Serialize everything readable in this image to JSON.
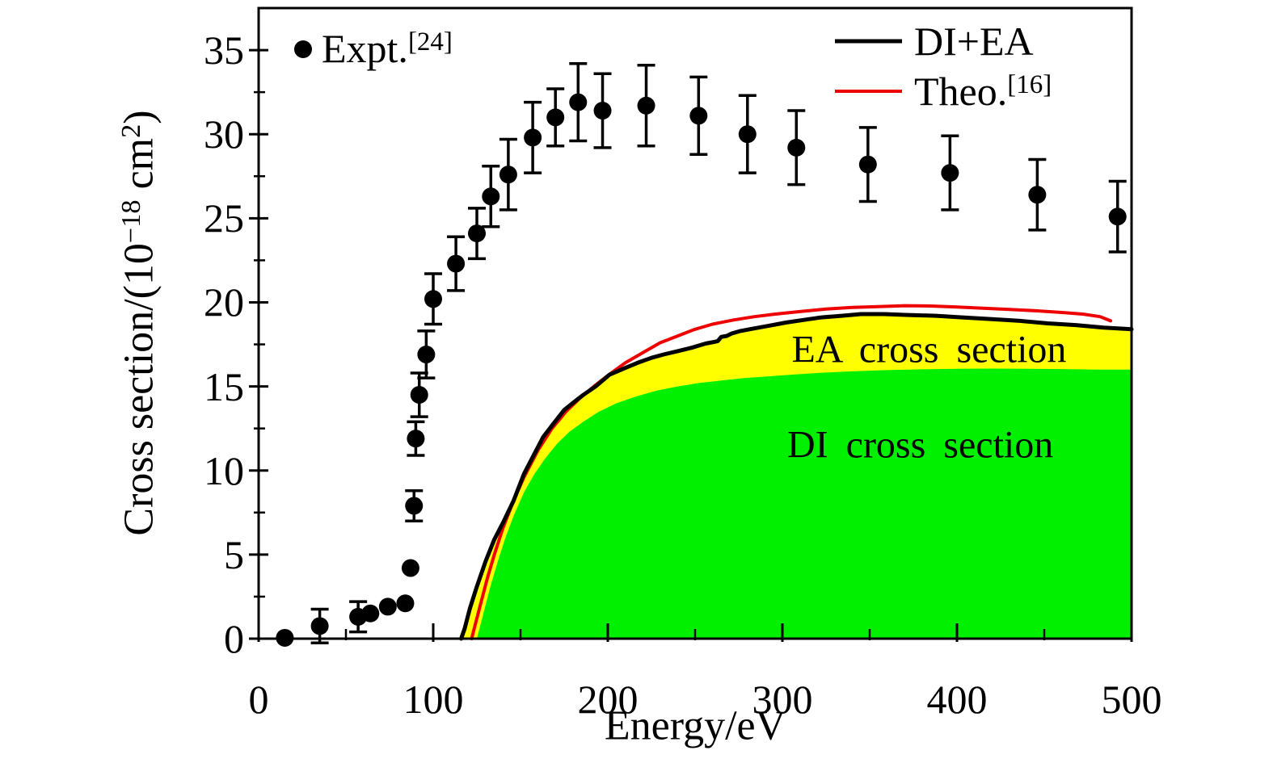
{
  "chart_data": {
    "type": "line",
    "title": "",
    "xlabel": "Energy/eV",
    "ylabel": "Cross section/(10−18 cm2)",
    "ylabel_parts": [
      "Cross section/(10",
      "−18",
      " cm",
      "2",
      ")"
    ],
    "xlim": [
      0,
      500
    ],
    "ylim": [
      0,
      37.5
    ],
    "xticks": [
      0,
      100,
      200,
      300,
      400,
      500
    ],
    "yticks": [
      0,
      5,
      10,
      15,
      20,
      25,
      30,
      35
    ],
    "xtick_labels": [
      "0",
      "100",
      "200",
      "300",
      "400",
      "500"
    ],
    "ytick_labels": [
      "0",
      "5",
      "10",
      "15",
      "20",
      "25",
      "30",
      "35"
    ],
    "minor_xticks": [
      50,
      150,
      250,
      350,
      450
    ],
    "minor_yticks": [
      2.5,
      7.5,
      12.5,
      17.5,
      22.5,
      27.5,
      32.5
    ],
    "grid": false,
    "legend_position": "top",
    "legend": [
      {
        "label": "Expt.",
        "sup": "[24]",
        "marker": "dot",
        "color": "#000000"
      },
      {
        "label": "DI+EA",
        "sup": "",
        "marker": "line",
        "color": "#000000"
      },
      {
        "label": "Theo.",
        "sup": "[16]",
        "marker": "line",
        "color": "#ee0000"
      }
    ],
    "colors": {
      "di_fill": "#00f000",
      "ea_fill": "#ffff00",
      "di_ea_line": "#000000",
      "theo_line": "#ee0000",
      "expt_marker": "#000000"
    },
    "annotations": [
      {
        "text": "EA cross section",
        "x": 384,
        "y": 17.2
      },
      {
        "text": "DI cross section",
        "x": 379,
        "y": 11.5
      }
    ],
    "expt": {
      "name": "Expt.[24]",
      "type": "scatter_errorbar",
      "points": [
        [
          15,
          0.05,
          null
        ],
        [
          35,
          0.75,
          1.0
        ],
        [
          57,
          1.3,
          0.9
        ],
        [
          64,
          1.5,
          null
        ],
        [
          74,
          1.9,
          null
        ],
        [
          84,
          2.1,
          null
        ],
        [
          87,
          4.2,
          null
        ],
        [
          89,
          7.9,
          0.9
        ],
        [
          90,
          11.9,
          1.0
        ],
        [
          92,
          14.5,
          1.3
        ],
        [
          96,
          16.9,
          1.4
        ],
        [
          100,
          20.2,
          1.5
        ],
        [
          113,
          22.3,
          1.6
        ],
        [
          125,
          24.1,
          1.5
        ],
        [
          133,
          26.3,
          1.8
        ],
        [
          143,
          27.6,
          2.1
        ],
        [
          157,
          29.8,
          2.1
        ],
        [
          170,
          31.0,
          1.7
        ],
        [
          183,
          31.9,
          2.3
        ],
        [
          197,
          31.4,
          2.2
        ],
        [
          222,
          31.7,
          2.4
        ],
        [
          252,
          31.1,
          2.3
        ],
        [
          280,
          30.0,
          2.3
        ],
        [
          308,
          29.2,
          2.2
        ],
        [
          349,
          28.2,
          2.2
        ],
        [
          396,
          27.7,
          2.2
        ],
        [
          446,
          26.4,
          2.1
        ],
        [
          492,
          25.1,
          2.1
        ]
      ]
    },
    "series": [
      {
        "name": "DI+EA",
        "type": "line",
        "color": "#000000",
        "fill": "#ffff00",
        "width": 5,
        "points": [
          [
            116,
            0
          ],
          [
            118,
            0.6
          ],
          [
            121,
            1.8
          ],
          [
            125,
            3.1
          ],
          [
            130,
            4.6
          ],
          [
            135,
            5.9
          ],
          [
            140,
            6.9
          ],
          [
            146,
            8.2
          ],
          [
            152,
            9.8
          ],
          [
            158,
            11.0
          ],
          [
            163,
            12.0
          ],
          [
            169,
            12.8
          ],
          [
            175,
            13.6
          ],
          [
            181,
            14.1
          ],
          [
            186,
            14.5
          ],
          [
            193,
            15.0
          ],
          [
            201,
            15.7
          ],
          [
            210,
            16.1
          ],
          [
            217,
            16.4
          ],
          [
            225,
            16.7
          ],
          [
            232,
            16.9
          ],
          [
            240,
            17.1
          ],
          [
            248,
            17.3
          ],
          [
            256,
            17.55
          ],
          [
            261,
            17.65
          ],
          [
            263,
            17.7
          ],
          [
            265,
            17.95
          ],
          [
            268,
            18.0
          ],
          [
            271,
            18.15
          ],
          [
            276,
            18.3
          ],
          [
            284,
            18.45
          ],
          [
            292,
            18.6
          ],
          [
            302,
            18.8
          ],
          [
            312,
            18.95
          ],
          [
            322,
            19.1
          ],
          [
            334,
            19.2
          ],
          [
            345,
            19.3
          ],
          [
            358,
            19.3
          ],
          [
            372,
            19.25
          ],
          [
            388,
            19.2
          ],
          [
            404,
            19.1
          ],
          [
            420,
            19.0
          ],
          [
            436,
            18.9
          ],
          [
            452,
            18.75
          ],
          [
            468,
            18.65
          ],
          [
            484,
            18.5
          ],
          [
            500,
            18.4
          ]
        ]
      },
      {
        "name": "DI",
        "type": "area",
        "color": null,
        "fill": "#00f000",
        "width": 0,
        "points": [
          [
            125,
            0
          ],
          [
            127,
            0.8
          ],
          [
            130,
            2.0
          ],
          [
            133,
            3.2
          ],
          [
            137,
            4.6
          ],
          [
            141,
            5.9
          ],
          [
            146,
            7.3
          ],
          [
            152,
            8.7
          ],
          [
            158,
            9.8
          ],
          [
            164,
            10.7
          ],
          [
            171,
            11.6
          ],
          [
            178,
            12.3
          ],
          [
            186,
            12.9
          ],
          [
            195,
            13.5
          ],
          [
            205,
            14.0
          ],
          [
            216,
            14.4
          ],
          [
            228,
            14.75
          ],
          [
            240,
            15.0
          ],
          [
            252,
            15.2
          ],
          [
            265,
            15.35
          ],
          [
            278,
            15.5
          ],
          [
            292,
            15.6
          ],
          [
            308,
            15.72
          ],
          [
            324,
            15.82
          ],
          [
            340,
            15.9
          ],
          [
            360,
            15.97
          ],
          [
            380,
            16.02
          ],
          [
            400,
            16.05
          ],
          [
            420,
            16.06
          ],
          [
            440,
            16.05
          ],
          [
            460,
            16.03
          ],
          [
            480,
            16.0
          ],
          [
            500,
            16.0
          ]
        ]
      },
      {
        "name": "Theo.[16]",
        "type": "line",
        "color": "#ee0000",
        "fill": null,
        "width": 4,
        "points": [
          [
            122,
            0
          ],
          [
            124,
            0.8
          ],
          [
            127,
            2.0
          ],
          [
            131,
            3.6
          ],
          [
            135,
            5.0
          ],
          [
            140,
            6.6
          ],
          [
            146,
            8.2
          ],
          [
            152,
            9.6
          ],
          [
            160,
            11.2
          ],
          [
            168,
            12.5
          ],
          [
            176,
            13.5
          ],
          [
            184,
            14.3
          ],
          [
            192,
            15.0
          ],
          [
            200,
            15.65
          ],
          [
            210,
            16.4
          ],
          [
            220,
            17.0
          ],
          [
            230,
            17.6
          ],
          [
            240,
            18.0
          ],
          [
            250,
            18.4
          ],
          [
            260,
            18.7
          ],
          [
            272,
            18.95
          ],
          [
            284,
            19.15
          ],
          [
            296,
            19.3
          ],
          [
            310,
            19.45
          ],
          [
            325,
            19.6
          ],
          [
            340,
            19.7
          ],
          [
            355,
            19.75
          ],
          [
            370,
            19.8
          ],
          [
            385,
            19.78
          ],
          [
            400,
            19.72
          ],
          [
            415,
            19.65
          ],
          [
            430,
            19.58
          ],
          [
            445,
            19.5
          ],
          [
            460,
            19.4
          ],
          [
            472,
            19.3
          ],
          [
            482,
            19.15
          ],
          [
            488,
            18.9
          ]
        ]
      }
    ]
  }
}
